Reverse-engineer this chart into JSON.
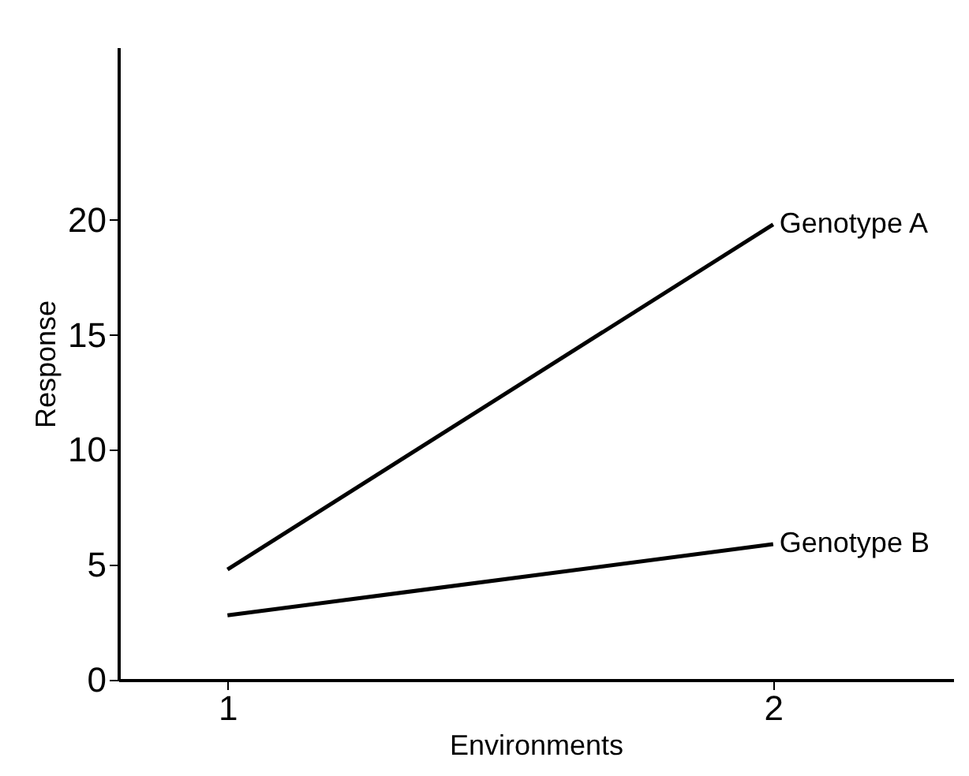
{
  "chart_data": {
    "type": "line",
    "xlabel": "Environments",
    "ylabel": "Response",
    "x": [
      1,
      2
    ],
    "series": [
      {
        "name": "Genotype A",
        "color": "#000000",
        "values": [
          4.8,
          19.8
        ]
      },
      {
        "name": "Genotype B",
        "color": "#000000",
        "values": [
          2.8,
          5.9
        ]
      }
    ],
    "xlim": [
      0.8,
      2.33
    ],
    "xticks": [
      1,
      2
    ],
    "ylim": [
      0,
      27.5
    ],
    "yticks": [
      0,
      5,
      10,
      15,
      20
    ],
    "grid": false
  }
}
